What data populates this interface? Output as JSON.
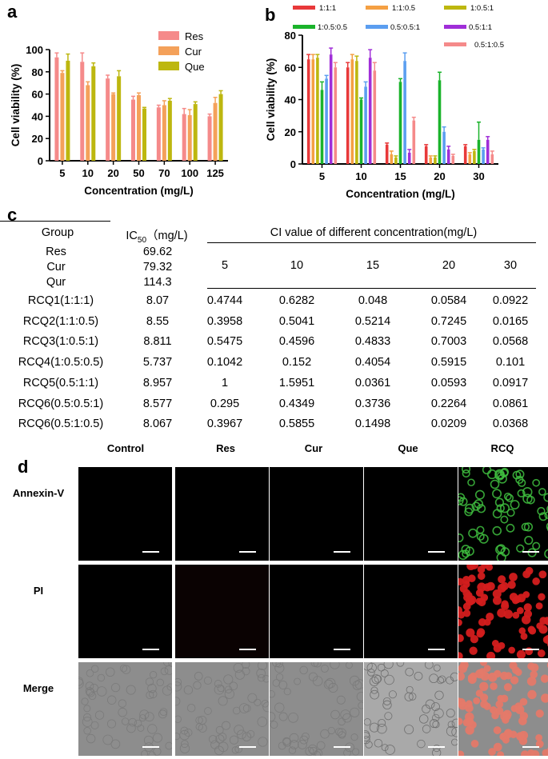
{
  "panels": {
    "a": "a",
    "b": "b",
    "c": "c",
    "d": "d"
  },
  "chart_data": [
    {
      "type": "bar",
      "panel": "a",
      "categories": [
        "5",
        "10",
        "20",
        "50",
        "70",
        "100",
        "125"
      ],
      "series": [
        {
          "name": "Res",
          "color": "#f58a8a",
          "values": [
            93,
            89,
            74,
            55,
            48,
            42,
            40
          ],
          "errors": [
            4,
            8,
            3,
            3,
            2,
            5,
            2
          ]
        },
        {
          "name": "Cur",
          "color": "#f4a15a",
          "values": [
            79,
            68,
            60,
            59,
            50,
            41,
            52
          ],
          "errors": [
            2,
            3,
            1,
            2,
            4,
            5,
            5
          ]
        },
        {
          "name": "Que",
          "color": "#bdb70f",
          "values": [
            90,
            85,
            76,
            47,
            54,
            51,
            60
          ],
          "errors": [
            6,
            3,
            5,
            1,
            2,
            2,
            3
          ]
        }
      ],
      "xlabel": "Concentration (mg/L)",
      "ylabel": "Cell viability (%)",
      "ylim": [
        0,
        100
      ],
      "yticks": [
        "0",
        "20",
        "40",
        "60",
        "80",
        "100"
      ],
      "legend": "top-right"
    },
    {
      "type": "bar",
      "panel": "b",
      "categories": [
        "5",
        "10",
        "15",
        "20",
        "30"
      ],
      "series": [
        {
          "name": "1:1:1",
          "color": "#e8393a",
          "values": [
            65,
            60,
            12,
            11,
            11
          ],
          "errors": [
            3,
            3,
            1,
            1,
            1
          ]
        },
        {
          "name": "1:1:0.5",
          "color": "#f5a043",
          "values": [
            65,
            65,
            6,
            4,
            6
          ],
          "errors": [
            3,
            3,
            2,
            1,
            1
          ]
        },
        {
          "name": "1:0.5:1",
          "color": "#bdb70f",
          "values": [
            66,
            64,
            4,
            4,
            8
          ],
          "errors": [
            2,
            3,
            1,
            1,
            1
          ]
        },
        {
          "name": "1:0.5:0.5",
          "color": "#1ab32b",
          "values": [
            46,
            40,
            51,
            52,
            15
          ],
          "errors": [
            5,
            1,
            2,
            5,
            11
          ]
        },
        {
          "name": "0.5:0.5:1",
          "color": "#5b9ef0",
          "values": [
            53,
            48,
            64,
            20,
            9
          ],
          "errors": [
            2,
            3,
            5,
            3,
            1
          ]
        },
        {
          "name": "0.5:1:1",
          "color": "#a02ed8",
          "values": [
            68,
            66,
            7,
            9,
            15
          ],
          "errors": [
            4,
            5,
            2,
            2,
            2
          ]
        },
        {
          "name": "0.5:1:0.5",
          "color": "#f58a8a",
          "values": [
            60,
            58,
            27,
            5,
            6
          ],
          "errors": [
            3,
            5,
            2,
            1,
            2
          ]
        }
      ],
      "xlabel": "Concentration (mg/L)",
      "ylabel": "Cell viability (%)",
      "ylim": [
        0,
        80
      ],
      "yticks": [
        "0",
        "20",
        "40",
        "60",
        "80"
      ],
      "legend": "top"
    }
  ],
  "table": {
    "col_group": "Group",
    "col_ic50": "IC",
    "col_ic50_sub": "50",
    "col_ic50_unit": "（mg/L)",
    "ci_header": "CI value of different concentration(mg/L)",
    "conc_headers": [
      "5",
      "10",
      "15",
      "20",
      "30"
    ],
    "singles": [
      {
        "name": "Res",
        "ic50": "69.62"
      },
      {
        "name": "Cur",
        "ic50": "79.32"
      },
      {
        "name": "Qur",
        "ic50": "114.3"
      }
    ],
    "rows": [
      {
        "name": "RCQ1(1:1:1)",
        "ic50": "8.07",
        "ci": [
          "0.4744",
          "0.6282",
          "0.048",
          "0.0584",
          "0.0922"
        ]
      },
      {
        "name": "RCQ2(1:1:0.5)",
        "ic50": "8.55",
        "ci": [
          "0.3958",
          "0.5041",
          "0.5214",
          "0.7245",
          "0.0165"
        ]
      },
      {
        "name": "RCQ3(1:0.5:1)",
        "ic50": "8.811",
        "ci": [
          "0.5475",
          "0.4596",
          "0.4833",
          "0.7003",
          "0.0568"
        ]
      },
      {
        "name": "RCQ4(1:0.5:0.5)",
        "ic50": "5.737",
        "ci": [
          "0.1042",
          "0.152",
          "0.4054",
          "0.5915",
          "0.101"
        ]
      },
      {
        "name": "RCQ5(0.5:1:1)",
        "ic50": "8.957",
        "ci": [
          "1",
          "1.5951",
          "0.0361",
          "0.0593",
          "0.0917"
        ]
      },
      {
        "name": "RCQ6(0.5:0.5:1)",
        "ic50": "8.577",
        "ci": [
          "0.295",
          "0.4349",
          "0.3736",
          "0.2264",
          "0.0861"
        ]
      },
      {
        "name": "RCQ6(0.5:1:0.5)",
        "ic50": "8.067",
        "ci": [
          "0.3967",
          "0.5855",
          "0.1498",
          "0.0209",
          "0.0368"
        ]
      }
    ]
  },
  "micrographs": {
    "columns": [
      "Control",
      "Res",
      "Cur",
      "Que",
      "RCQ"
    ],
    "rows": [
      "Annexin-V",
      "PI",
      "Merge"
    ]
  }
}
